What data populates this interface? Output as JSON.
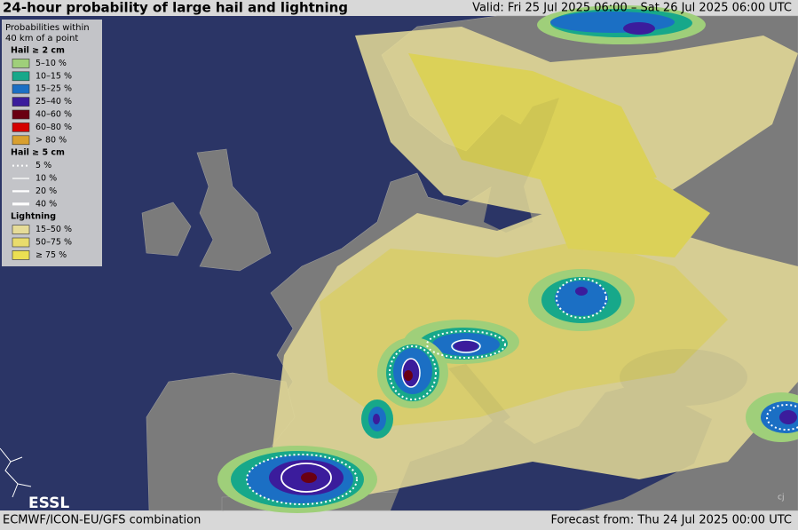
{
  "header": {
    "title": "24-hour probability of large hail and lightning",
    "valid": "Valid: Fri 25 Jul 2025 06:00 – Sat 26 Jul 2025 06:00 UTC"
  },
  "legend": {
    "heading": [
      "Probabilities within",
      "40 km of a point"
    ],
    "sections": [
      {
        "title": "Hail ≥ 2 cm",
        "kind": "fill",
        "items": [
          {
            "label": "5–10 %",
            "color": "#9fcf7a"
          },
          {
            "label": "10–15 %",
            "color": "#17a88a"
          },
          {
            "label": "15–25 %",
            "color": "#1b6fc4"
          },
          {
            "label": "25–40 %",
            "color": "#3b1c9c"
          },
          {
            "label": "40–60 %",
            "color": "#6a0012"
          },
          {
            "label": "60–80 %",
            "color": "#d40000"
          },
          {
            "label": "> 80 %",
            "color": "#d9a030"
          }
        ]
      },
      {
        "title": "Hail ≥ 5 cm",
        "kind": "line",
        "items": [
          {
            "label": "5 %"
          },
          {
            "label": "10 %"
          },
          {
            "label": "20 %"
          },
          {
            "label": "40 %"
          }
        ]
      },
      {
        "title": "Lightning",
        "kind": "fill",
        "items": [
          {
            "label": "15–50 %",
            "color": "#e6dc98"
          },
          {
            "label": "50–75 %",
            "color": "#e9dc6c"
          },
          {
            "label": "≥ 75 %",
            "color": "#ece052"
          }
        ]
      }
    ]
  },
  "logo": "ESSL",
  "initials": "cj",
  "footer": {
    "models": "ECMWF/ICON-EU/GFS combination",
    "forecast": "Forecast from: Thu 24 Jul 2025 00:00 UTC"
  }
}
